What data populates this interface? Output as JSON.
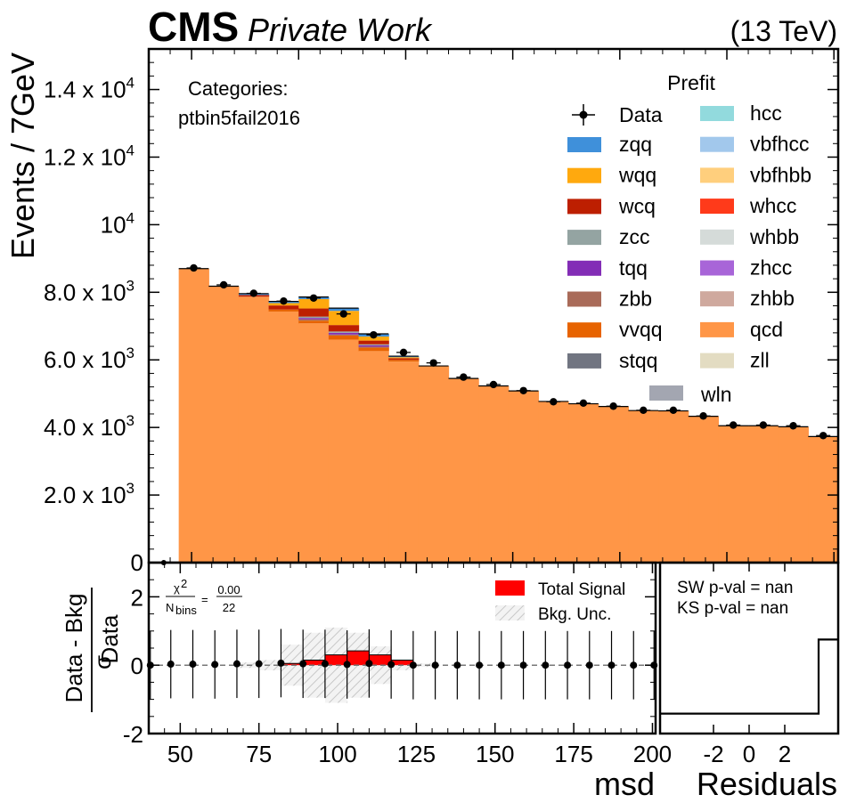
{
  "header": {
    "cms": "CMS",
    "private_work": "Private Work",
    "energy": "(13 TeV)"
  },
  "main_panel": {
    "ylabel": "Events / 7GeV",
    "categories_label": "Categories:",
    "category_name": "ptbin5fail2016"
  },
  "legend": {
    "title": "Prefit",
    "data_label": "Data",
    "entries": [
      {
        "name": "zqq",
        "color": "#3f90da"
      },
      {
        "name": "wqq",
        "color": "#ffa90e"
      },
      {
        "name": "wcq",
        "color": "#bd1f01"
      },
      {
        "name": "zcc",
        "color": "#94a4a2"
      },
      {
        "name": "tqq",
        "color": "#832db6"
      },
      {
        "name": "zbb",
        "color": "#a96b59"
      },
      {
        "name": "vvqq",
        "color": "#e76300"
      },
      {
        "name": "stqq",
        "color": "#717581"
      },
      {
        "name": "hcc",
        "color": "#92dadd"
      },
      {
        "name": "vbfhcc",
        "color": "#a2c8ec"
      },
      {
        "name": "vbfhbb",
        "color": "#ffcf7d"
      },
      {
        "name": "whcc",
        "color": "#ff3a1a"
      },
      {
        "name": "whbb",
        "color": "#d5dbd9"
      },
      {
        "name": "zhcc",
        "color": "#a865d8"
      },
      {
        "name": "zhbb",
        "color": "#cfa99e"
      },
      {
        "name": "qcd",
        "color": "#ff9647"
      },
      {
        "name": "zll",
        "color": "#e3dcc2"
      },
      {
        "name": "wln",
        "color": "#a3a6b1"
      }
    ]
  },
  "ratio_panel": {
    "ylabel_num": "Data - Bkg",
    "ylabel_den": "σ",
    "ylabel_den_sub": "Data",
    "chi2_sym": "χ",
    "chi2_sup": "2",
    "nbins_N": "N",
    "nbins_sub": "bins",
    "chi2_num": "0.00",
    "chi2_den": "22",
    "chi2_eq": "=",
    "total_signal_label": "Total Signal",
    "bkg_unc_label": "Bkg. Unc.",
    "xlabel": "msd"
  },
  "residual_panel": {
    "sw_text": "SW p-val = nan",
    "ks_text": "KS p-val = nan",
    "xlabel": "Residuals"
  },
  "chart_data": [
    {
      "type": "bar",
      "stacked": true,
      "name": "main",
      "bin_edges": [
        40,
        47,
        54,
        61,
        68,
        75,
        82,
        89,
        96,
        103,
        110,
        117,
        124,
        131,
        138,
        145,
        152,
        159,
        166,
        173,
        180,
        187,
        194,
        201
      ],
      "xlim": [
        40,
        201
      ],
      "ylim": [
        0,
        15200
      ],
      "ylabel": "Events / 7GeV",
      "y_ticks": [
        {
          "value": 0,
          "label": "0"
        },
        {
          "value": 2000,
          "label": "2.0 x 10",
          "exp": "3"
        },
        {
          "value": 4000,
          "label": "4.0 x 10",
          "exp": "3"
        },
        {
          "value": 6000,
          "label": "6.0 x 10",
          "exp": "3"
        },
        {
          "value": 8000,
          "label": "8.0 x 10",
          "exp": "3"
        },
        {
          "value": 10000,
          "label": "10",
          "exp": "4"
        },
        {
          "value": 12000,
          "label": "1.2 x 10",
          "exp": "4"
        },
        {
          "value": 14000,
          "label": "1.4 x 10",
          "exp": "4"
        }
      ],
      "series": [
        {
          "name": "qcd",
          "values": [
            0,
            8700,
            8180,
            7870,
            7430,
            7080,
            6600,
            6260,
            5950,
            5820,
            5450,
            5230,
            5080,
            4770,
            4700,
            4620,
            4500,
            4490,
            4330,
            4050,
            4050,
            4020,
            3730
          ]
        },
        {
          "name": "vvqq",
          "values": [
            0,
            0,
            0,
            0,
            60,
            80,
            120,
            100,
            50,
            0,
            0,
            0,
            0,
            0,
            0,
            0,
            0,
            0,
            0,
            0,
            0,
            0,
            0
          ]
        },
        {
          "name": "zbb",
          "values": [
            0,
            0,
            0,
            0,
            0,
            40,
            30,
            30,
            0,
            0,
            0,
            0,
            0,
            0,
            0,
            0,
            0,
            0,
            0,
            0,
            0,
            0,
            0
          ]
        },
        {
          "name": "tqq",
          "values": [
            0,
            0,
            0,
            0,
            0,
            40,
            50,
            40,
            0,
            0,
            0,
            0,
            0,
            0,
            0,
            0,
            0,
            0,
            0,
            0,
            0,
            0,
            0
          ]
        },
        {
          "name": "zcc",
          "values": [
            0,
            0,
            0,
            0,
            0,
            40,
            40,
            30,
            0,
            0,
            0,
            0,
            0,
            0,
            0,
            0,
            0,
            0,
            0,
            0,
            0,
            0,
            0
          ]
        },
        {
          "name": "wcq",
          "values": [
            0,
            0,
            0,
            50,
            120,
            240,
            190,
            110,
            50,
            0,
            0,
            0,
            0,
            0,
            0,
            0,
            0,
            0,
            0,
            0,
            0,
            0,
            0
          ]
        },
        {
          "name": "wqq",
          "values": [
            0,
            0,
            0,
            0,
            70,
            280,
            420,
            120,
            30,
            0,
            0,
            0,
            0,
            0,
            0,
            0,
            0,
            0,
            0,
            0,
            0,
            0,
            0
          ]
        },
        {
          "name": "zqq",
          "values": [
            0,
            0,
            0,
            40,
            50,
            60,
            80,
            80,
            30,
            0,
            0,
            0,
            0,
            0,
            0,
            0,
            0,
            0,
            0,
            0,
            0,
            0,
            0
          ]
        }
      ],
      "data_points": [
        {
          "x": 50.5,
          "y": 8720
        },
        {
          "x": 57.5,
          "y": 8220
        },
        {
          "x": 64.5,
          "y": 7970
        },
        {
          "x": 71.5,
          "y": 7740
        },
        {
          "x": 78.5,
          "y": 7830
        },
        {
          "x": 85.5,
          "y": 7360
        },
        {
          "x": 92.5,
          "y": 6740
        },
        {
          "x": 99.5,
          "y": 6220
        },
        {
          "x": 106.5,
          "y": 5910
        },
        {
          "x": 113.5,
          "y": 5490
        },
        {
          "x": 120.5,
          "y": 5270
        },
        {
          "x": 127.5,
          "y": 5090
        },
        {
          "x": 134.5,
          "y": 4760
        },
        {
          "x": 141.5,
          "y": 4720
        },
        {
          "x": 148.5,
          "y": 4630
        },
        {
          "x": 155.5,
          "y": 4510
        },
        {
          "x": 162.5,
          "y": 4510
        },
        {
          "x": 169.5,
          "y": 4340
        },
        {
          "x": 176.5,
          "y": 4070
        },
        {
          "x": 183.5,
          "y": 4070
        },
        {
          "x": 190.5,
          "y": 4050
        },
        {
          "x": 197.5,
          "y": 3760
        }
      ],
      "extra_point": {
        "x": 43.5,
        "y": 0
      }
    },
    {
      "type": "scatter",
      "name": "ratio",
      "xlim": [
        40,
        201
      ],
      "ylim": [
        -2,
        3
      ],
      "x_ticks": [
        50,
        75,
        100,
        125,
        150,
        175,
        200
      ],
      "y_ticks": [
        -2,
        0,
        2
      ],
      "xlabel": "msd",
      "points_x": [
        40.5,
        47,
        54,
        61,
        68,
        75,
        82,
        89,
        96,
        103,
        110,
        117,
        124,
        131,
        138,
        145,
        152,
        159,
        166,
        173,
        180,
        187,
        194,
        200.5
      ],
      "points_y": [
        0,
        0.03,
        0.03,
        0.02,
        0.04,
        0.04,
        0.06,
        0.04,
        0.04,
        0.02,
        0.05,
        0.02,
        0,
        0,
        0,
        0,
        0,
        0,
        0,
        0,
        0,
        0,
        0,
        0
      ],
      "error": 1.0,
      "signal": [
        0,
        0,
        0,
        0,
        0,
        0,
        0.05,
        0.15,
        0.3,
        0.42,
        0.3,
        0.15,
        0,
        0,
        0,
        0,
        0,
        0,
        0,
        0,
        0,
        0,
        0
      ],
      "bkg_unc": [
        0,
        0,
        0,
        0,
        0.08,
        0.15,
        0.6,
        0.95,
        1.1,
        0.95,
        0.55,
        0.15,
        0.05,
        0,
        0,
        0,
        0,
        0,
        0,
        0,
        0,
        0,
        0
      ]
    },
    {
      "type": "line",
      "name": "residuals",
      "x_ticks": [
        -2,
        0,
        2
      ],
      "xlim": [
        -5,
        5
      ],
      "ylim": [
        0,
        3
      ],
      "xlabel": "Residuals",
      "step_x": [
        -5,
        3.9,
        3.9,
        5
      ],
      "step_y": [
        0.35,
        0.35,
        1.65,
        1.65
      ]
    }
  ]
}
